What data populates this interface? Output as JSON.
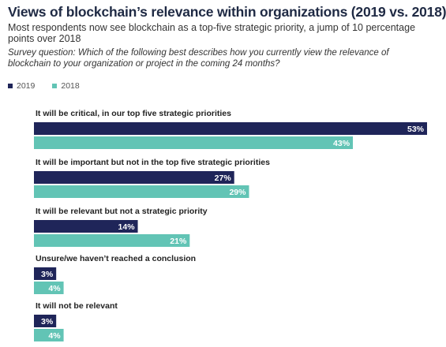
{
  "header": {
    "title": "Views of blockchain’s relevance within organizations (2019 vs. 2018)",
    "subtitle": "Most respondents now see blockchain as a top-five strategic priority, a jump of 10 percentage points over 2018",
    "question": "Survey question: Which of the following best describes how you currently view the relevance of blockchain to your organization or project in the coming 24 months?"
  },
  "legend": {
    "items": [
      {
        "label": "2019",
        "color": "#1f2559"
      },
      {
        "label": "2018",
        "color": "#62c4b5"
      }
    ]
  },
  "chart_data": {
    "type": "bar",
    "orientation": "horizontal",
    "categories": [
      "It will be critical, in our top five strategic priorities",
      "It will be important but not in the top five strategic priorities",
      "It will be relevant but not a strategic priority",
      "Unsure/we haven’t reached a conclusion",
      "It will not be relevant"
    ],
    "series": [
      {
        "name": "2019",
        "values": [
          53,
          27,
          14,
          3,
          3
        ],
        "color": "#1f2559"
      },
      {
        "name": "2018",
        "values": [
          43,
          29,
          21,
          4,
          4
        ],
        "color": "#62c4b5"
      }
    ],
    "value_suffix": "%",
    "xlim": [
      0,
      53
    ],
    "grid": false,
    "legend_position": "top-left"
  }
}
